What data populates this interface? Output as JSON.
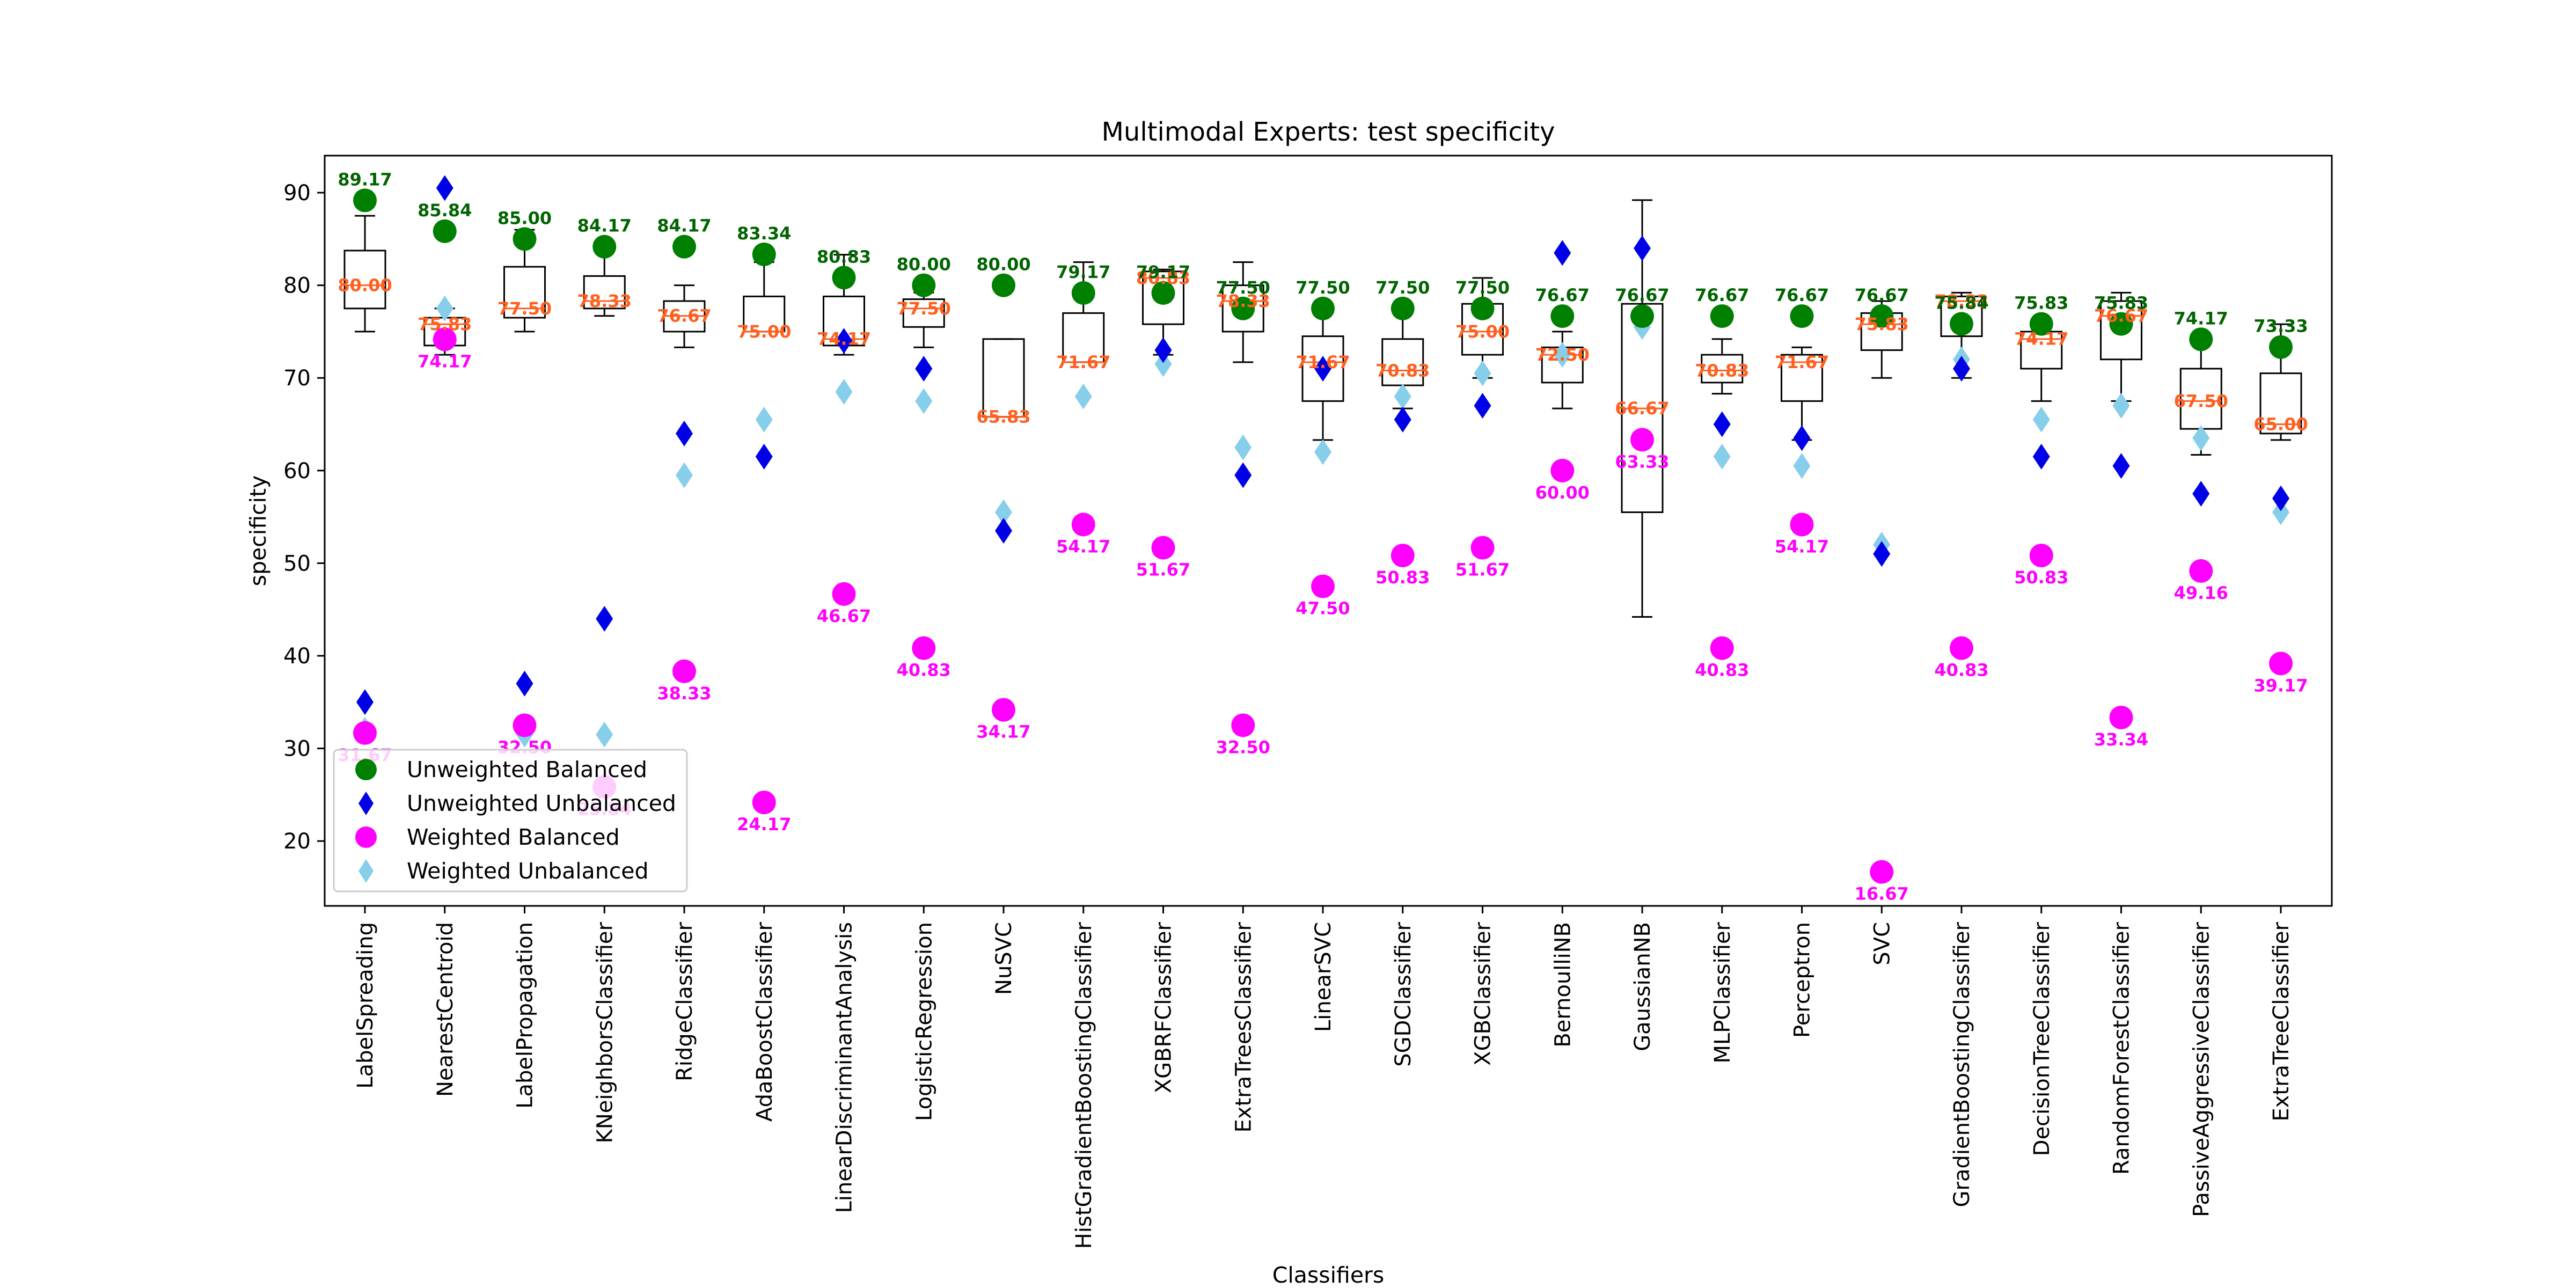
{
  "chart_data": {
    "type": "scatter",
    "title": "Multimodal Experts: test specificity",
    "xlabel": "Classifiers",
    "ylabel": "specificity",
    "ylim": [
      13,
      94
    ],
    "yticks": [
      20,
      30,
      40,
      50,
      60,
      70,
      80,
      90
    ],
    "grid": false,
    "legend_position": "lower-left",
    "categories": [
      "LabelSpreading",
      "NearestCentroid",
      "LabelPropagation",
      "KNeighborsClassifier",
      "RidgeClassifier",
      "AdaBoostClassifier",
      "LinearDiscriminantAnalysis",
      "LogisticRegression",
      "NuSVC",
      "HistGradientBoostingClassifier",
      "XGBRFClassifier",
      "ExtraTreesClassifier",
      "LinearSVC",
      "SGDClassifier",
      "XGBClassifier",
      "BernoulliNB",
      "GaussianNB",
      "MLPClassifier",
      "Perceptron",
      "SVC",
      "GradientBoostingClassifier",
      "DecisionTreeClassifier",
      "RandomForestClassifier",
      "PassiveAggressiveClassifier",
      "ExtraTreeClassifier"
    ],
    "boxes": [
      {
        "whislo": 75.0,
        "q1": 77.5,
        "med": 80.0,
        "q3": 83.75,
        "whishi": 87.5
      },
      {
        "whislo": 72.5,
        "q1": 73.5,
        "med": 75.8,
        "q3": 76.5,
        "whishi": 77.5
      },
      {
        "whislo": 75.0,
        "q1": 76.5,
        "med": 77.5,
        "q3": 82.0,
        "whishi": 86.0
      },
      {
        "whislo": 76.7,
        "q1": 77.5,
        "med": 78.3,
        "q3": 81.0,
        "whishi": 84.2
      },
      {
        "whislo": 73.3,
        "q1": 75.0,
        "med": 76.7,
        "q3": 78.3,
        "whishi": 80.0
      },
      {
        "whislo": 75.0,
        "q1": 75.0,
        "med": 75.0,
        "q3": 78.8,
        "whishi": 82.5
      },
      {
        "whislo": 72.5,
        "q1": 73.5,
        "med": 74.2,
        "q3": 78.8,
        "whishi": 83.3
      },
      {
        "whislo": 73.3,
        "q1": 75.5,
        "med": 77.5,
        "q3": 78.5,
        "whishi": 79.2
      },
      {
        "whislo": 65.8,
        "q1": 65.8,
        "med": 65.8,
        "q3": 74.2,
        "whishi": 74.2
      },
      {
        "whislo": 71.7,
        "q1": 71.7,
        "med": 71.7,
        "q3": 77.0,
        "whishi": 82.5
      },
      {
        "whislo": 72.5,
        "q1": 75.8,
        "med": 80.8,
        "q3": 81.5,
        "whishi": 81.7
      },
      {
        "whislo": 71.7,
        "q1": 75.0,
        "med": 78.3,
        "q3": 80.0,
        "whishi": 82.5
      },
      {
        "whislo": 63.3,
        "q1": 67.5,
        "med": 71.7,
        "q3": 74.5,
        "whishi": 77.5
      },
      {
        "whislo": 66.7,
        "q1": 69.2,
        "med": 70.8,
        "q3": 74.2,
        "whishi": 77.5
      },
      {
        "whislo": 70.0,
        "q1": 72.5,
        "med": 75.0,
        "q3": 78.0,
        "whishi": 80.8
      },
      {
        "whislo": 66.7,
        "q1": 69.5,
        "med": 72.5,
        "q3": 73.3,
        "whishi": 75.0
      },
      {
        "whislo": 44.2,
        "q1": 55.5,
        "med": 66.7,
        "q3": 78.0,
        "whishi": 89.2
      },
      {
        "whislo": 68.3,
        "q1": 69.5,
        "med": 70.8,
        "q3": 72.5,
        "whishi": 74.2
      },
      {
        "whislo": 63.3,
        "q1": 67.5,
        "med": 71.7,
        "q3": 72.5,
        "whishi": 73.3
      },
      {
        "whislo": 70.0,
        "q1": 73.0,
        "med": 75.8,
        "q3": 77.0,
        "whishi": 78.3
      },
      {
        "whislo": 70.0,
        "q1": 74.5,
        "med": 78.3,
        "q3": 78.8,
        "whishi": 79.2
      },
      {
        "whislo": 67.5,
        "q1": 71.0,
        "med": 74.2,
        "q3": 75.0,
        "whishi": 75.8
      },
      {
        "whislo": 67.5,
        "q1": 72.0,
        "med": 76.7,
        "q3": 78.3,
        "whishi": 79.2
      },
      {
        "whislo": 61.7,
        "q1": 64.5,
        "med": 67.5,
        "q3": 71.0,
        "whishi": 74.2
      },
      {
        "whislo": 63.3,
        "q1": 64.0,
        "med": 65.0,
        "q3": 70.5,
        "whishi": 75.8
      }
    ],
    "box_median_labels": [
      "80.00",
      "75.83",
      "77.50",
      "78.33",
      "76.67",
      "75.00",
      "74.17",
      "77.50",
      "65.83",
      "71.67",
      "80.83",
      "78.33",
      "71.67",
      "70.83",
      "75.00",
      "72.50",
      "66.67",
      "70.83",
      "71.67",
      "75.83",
      "78.33",
      "74.17",
      "76.67",
      "67.50",
      "65.00"
    ],
    "series": [
      {
        "name": "Unweighted Balanced",
        "marker": "circle",
        "color": "#008000",
        "label_color": "#006400",
        "values": [
          89.17,
          85.84,
          85.0,
          84.17,
          84.17,
          83.34,
          80.83,
          80.0,
          80.0,
          79.17,
          79.17,
          77.5,
          77.5,
          77.5,
          77.5,
          76.67,
          76.67,
          76.67,
          76.67,
          76.67,
          75.84,
          75.83,
          75.83,
          74.17,
          73.33
        ],
        "labels": [
          "89.17",
          "85.84",
          "85.00",
          "84.17",
          "84.17",
          "83.34",
          "80.83",
          "80.00",
          "80.00",
          "79.17",
          "79.17",
          "77.50",
          "77.50",
          "77.50",
          "77.50",
          "76.67",
          "76.67",
          "76.67",
          "76.67",
          "76.67",
          "75.84",
          "75.83",
          "75.83",
          "74.17",
          "73.33"
        ]
      },
      {
        "name": "Unweighted Unbalanced",
        "marker": "diamond",
        "color": "#0000e6",
        "values": [
          35.0,
          90.5,
          37.0,
          44.0,
          64.0,
          61.5,
          74.0,
          71.0,
          53.5,
          null,
          73.0,
          59.5,
          71.0,
          65.5,
          67.0,
          83.5,
          84.0,
          65.0,
          63.5,
          51.0,
          71.0,
          61.5,
          60.5,
          57.5,
          57.0
        ]
      },
      {
        "name": "Weighted Balanced",
        "marker": "circle",
        "color": "#ff00ff",
        "label_color": "#ff00ff",
        "values": [
          31.67,
          74.17,
          32.5,
          25.84,
          38.33,
          24.17,
          46.67,
          40.83,
          34.17,
          54.17,
          51.67,
          32.5,
          47.5,
          50.83,
          51.67,
          60.0,
          63.33,
          40.83,
          54.17,
          16.67,
          40.83,
          50.83,
          33.34,
          49.16,
          39.17
        ],
        "labels": [
          "31.67",
          "74.17",
          "32.50",
          "25.84",
          "38.33",
          "24.17",
          "46.67",
          "40.83",
          "34.17",
          "54.17",
          "51.67",
          "32.50",
          "47.50",
          "50.83",
          "51.67",
          "60.00",
          "63.33",
          "40.83",
          "54.17",
          "16.67",
          "40.83",
          "50.83",
          "33.34",
          "49.16",
          "39.17"
        ]
      },
      {
        "name": "Weighted Unbalanced",
        "marker": "diamond",
        "color": "#87ceeb",
        "values": [
          32.0,
          77.5,
          31.5,
          31.5,
          59.5,
          65.5,
          68.5,
          67.5,
          55.5,
          68.0,
          71.5,
          62.5,
          62.0,
          68.0,
          70.5,
          72.5,
          75.5,
          61.5,
          60.5,
          52.0,
          72.0,
          65.5,
          67.0,
          63.5,
          55.5
        ]
      }
    ],
    "median_label_color": "#ff5f1f"
  }
}
